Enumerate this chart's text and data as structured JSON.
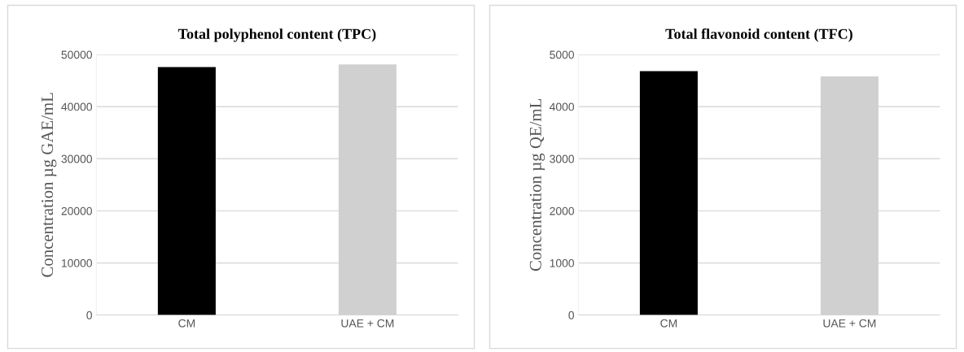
{
  "chart_data": [
    {
      "type": "bar",
      "title": "Total polyphenol content (TPC)",
      "ylabel": "Concentration µg GAE/mL",
      "categories": [
        "CM",
        "UAE + CM"
      ],
      "values": [
        47600,
        48100
      ],
      "colors": [
        "#000000",
        "#d0d0d0"
      ],
      "ylim": [
        0,
        50000
      ],
      "yticks": [
        0,
        10000,
        20000,
        30000,
        40000,
        50000
      ],
      "grid": "y",
      "legend": false
    },
    {
      "type": "bar",
      "title": "Total flavonoid content (TFC)",
      "ylabel": "Concentration µg QE/mL",
      "categories": [
        "CM",
        "UAE + CM"
      ],
      "values": [
        4680,
        4580
      ],
      "colors": [
        "#000000",
        "#d0d0d0"
      ],
      "ylim": [
        0,
        5000
      ],
      "yticks": [
        0,
        1000,
        2000,
        3000,
        4000,
        5000
      ],
      "grid": "y",
      "legend": false
    }
  ]
}
